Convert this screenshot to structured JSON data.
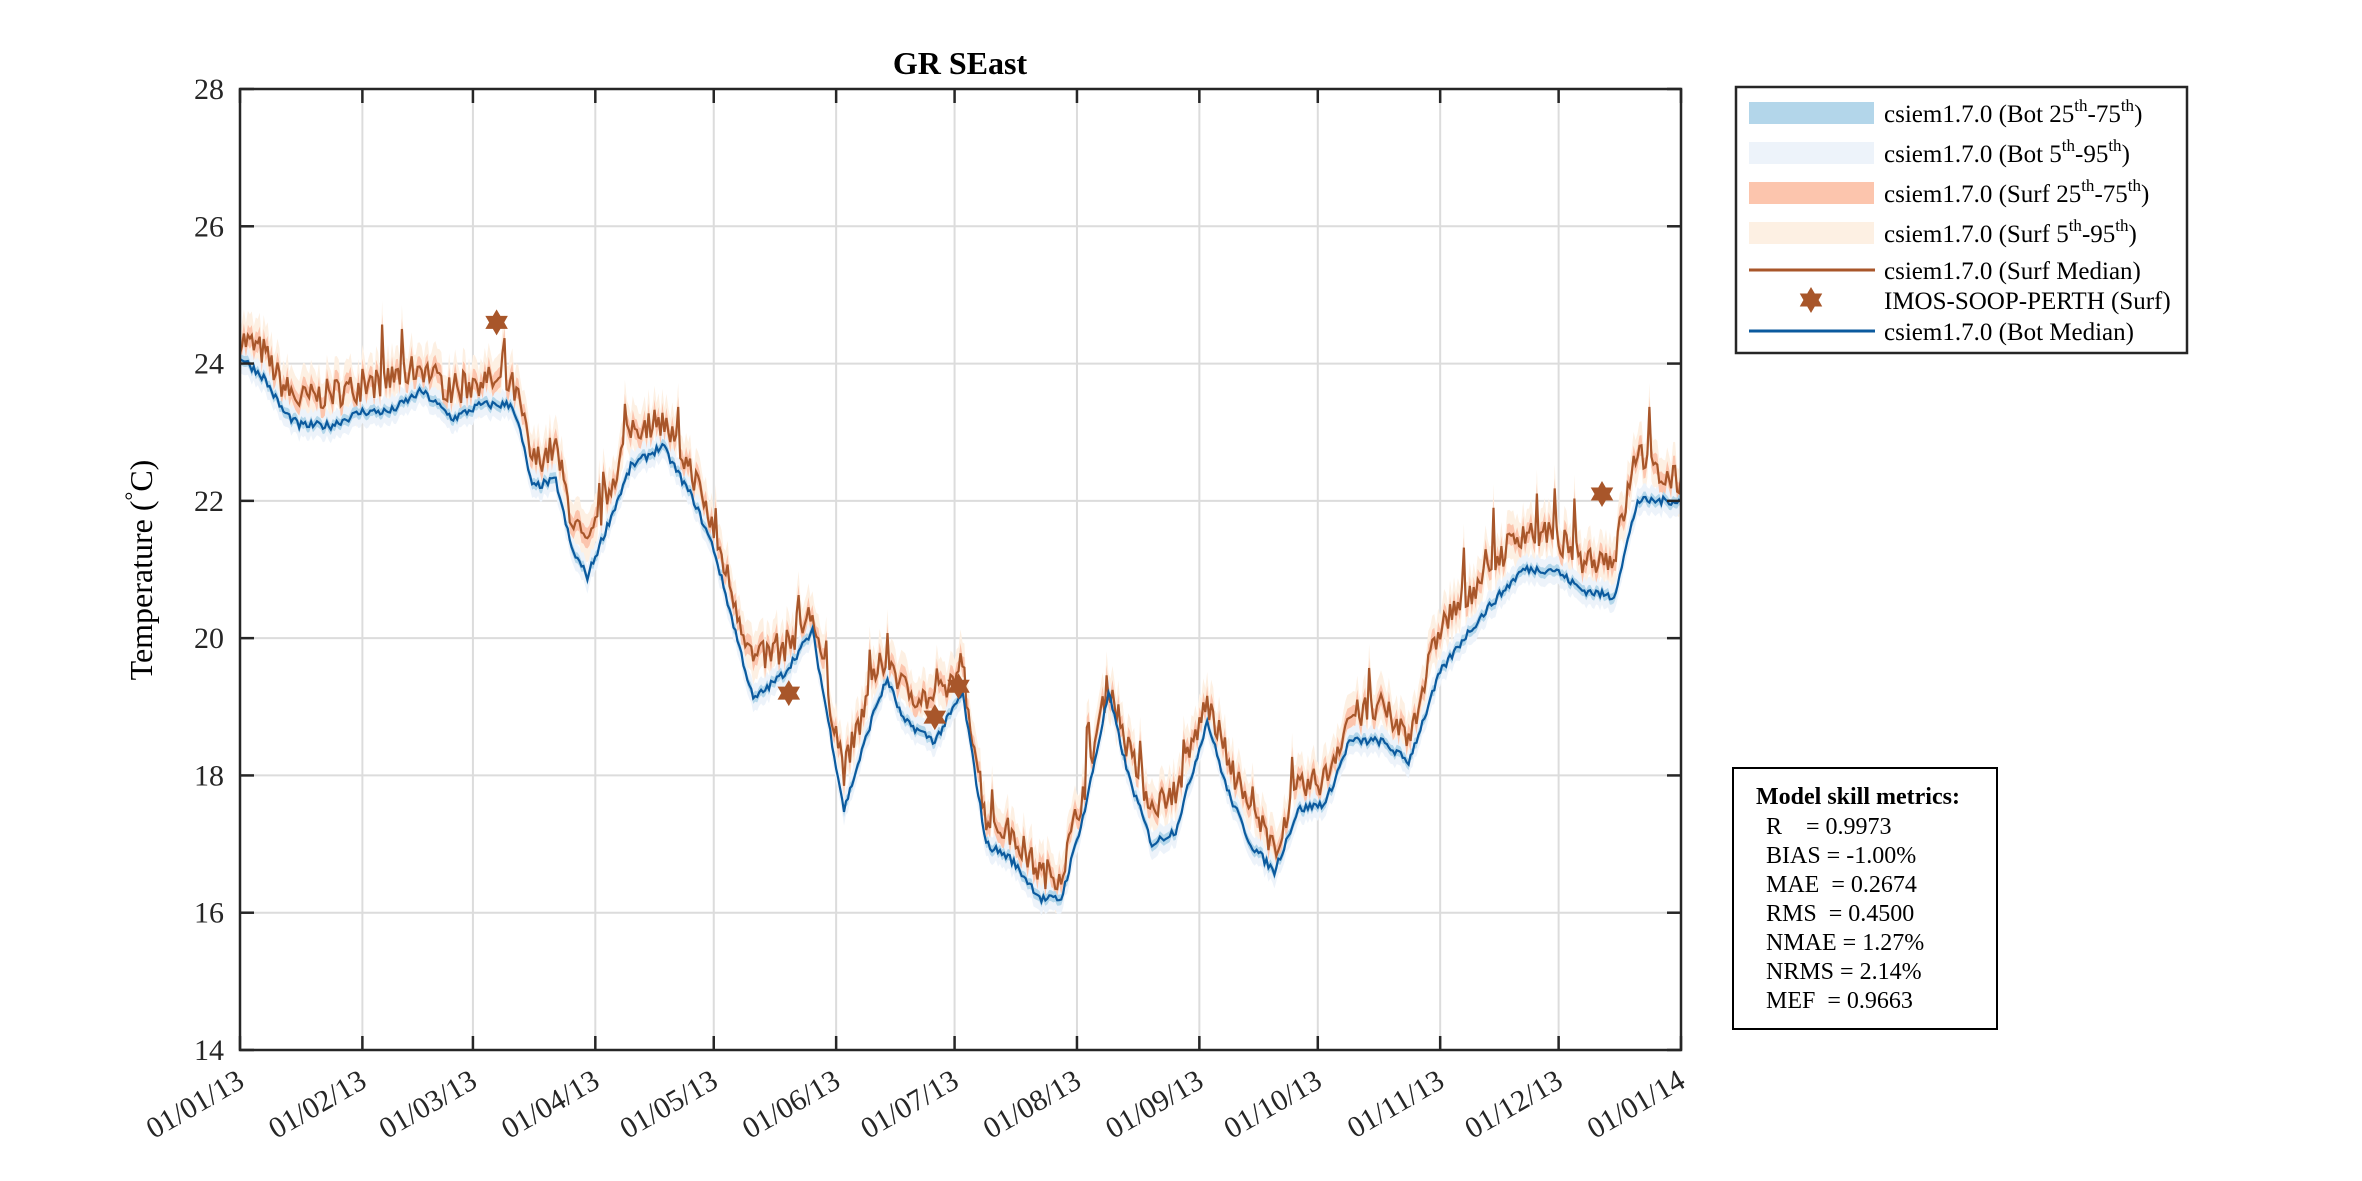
{
  "chart_data": {
    "type": "line",
    "title": "GR SEast",
    "ylabel": {
      "pre": "Temperature (",
      "sup": "°",
      "post": "C)"
    },
    "xlabel": "",
    "ylim": [
      14,
      28
    ],
    "xlim_days": [
      0,
      365
    ],
    "grid": true,
    "legend_placement": "outside-top-right",
    "yticks": [
      14,
      16,
      18,
      20,
      22,
      24,
      26,
      28
    ],
    "xticks": [
      {
        "day": 0,
        "label": "01/01/13"
      },
      {
        "day": 31,
        "label": "01/02/13"
      },
      {
        "day": 59,
        "label": "01/03/13"
      },
      {
        "day": 90,
        "label": "01/04/13"
      },
      {
        "day": 120,
        "label": "01/05/13"
      },
      {
        "day": 151,
        "label": "01/06/13"
      },
      {
        "day": 181,
        "label": "01/07/13"
      },
      {
        "day": 212,
        "label": "01/08/13"
      },
      {
        "day": 243,
        "label": "01/09/13"
      },
      {
        "day": 273,
        "label": "01/10/13"
      },
      {
        "day": 304,
        "label": "01/11/13"
      },
      {
        "day": 334,
        "label": "01/12/13"
      },
      {
        "day": 365,
        "label": "01/01/14"
      }
    ],
    "days": [
      0,
      6,
      11,
      15,
      23,
      31,
      38,
      46,
      50,
      54,
      61,
      69,
      71,
      74,
      80,
      84,
      88,
      99,
      107,
      115,
      120,
      130,
      138,
      145,
      153,
      161,
      164,
      168,
      176,
      183,
      189,
      195,
      203,
      208,
      214,
      220,
      225,
      231,
      237,
      245,
      250,
      256,
      262,
      268,
      275,
      281,
      289,
      296,
      304,
      310,
      317,
      325,
      333,
      340,
      348,
      354,
      359,
      365
    ],
    "series": [
      {
        "name": "csiem1.7.0 (Surf Median)",
        "color": "#a8562a",
        "values": [
          24.3,
          24.1,
          23.6,
          23.4,
          23.5,
          23.6,
          23.7,
          23.9,
          23.7,
          23.5,
          23.7,
          23.6,
          23.3,
          22.5,
          22.7,
          21.7,
          21.2,
          23.0,
          23.1,
          22.3,
          21.5,
          19.6,
          19.8,
          20.3,
          18.0,
          19.4,
          19.7,
          19.2,
          19.0,
          19.5,
          17.3,
          17.1,
          16.5,
          16.5,
          17.8,
          19.3,
          18.3,
          17.5,
          17.7,
          19.0,
          18.2,
          17.4,
          16.9,
          17.7,
          17.9,
          18.8,
          18.9,
          18.5,
          20.1,
          20.5,
          21.0,
          21.5,
          21.4,
          21.1,
          21.1,
          22.7,
          22.3,
          22.2
        ]
      },
      {
        "name": "csiem1.7.0 (Bot Median)",
        "color": "#0b5a9e",
        "values": [
          24.1,
          23.8,
          23.3,
          23.1,
          23.1,
          23.3,
          23.3,
          23.6,
          23.4,
          23.2,
          23.4,
          23.4,
          23.0,
          22.2,
          22.3,
          21.3,
          20.9,
          22.5,
          22.8,
          22.0,
          21.3,
          19.1,
          19.5,
          20.1,
          17.5,
          19.0,
          19.4,
          18.8,
          18.5,
          19.2,
          17.0,
          16.8,
          16.2,
          16.2,
          17.5,
          19.2,
          18.0,
          17.0,
          17.2,
          18.8,
          17.8,
          17.0,
          16.6,
          17.5,
          17.6,
          18.5,
          18.5,
          18.2,
          19.5,
          20.0,
          20.5,
          21.0,
          21.0,
          20.7,
          20.6,
          22.0,
          22.0,
          22.0
        ]
      }
    ],
    "bands": {
      "bot_iqr_halfwidth": 0.08,
      "bot_p5_95_halfwidth": 0.2,
      "surf_iqr_halfwidth": 0.15,
      "surf_p5_95_halfwidth": 0.35
    },
    "observations": {
      "name": "IMOS-SOOP-PERTH (Surf)",
      "color": "#a8562a",
      "points": [
        {
          "day": 65,
          "value": 24.6
        },
        {
          "day": 139,
          "value": 19.2
        },
        {
          "day": 176,
          "value": 18.85
        },
        {
          "day": 182,
          "value": 19.3
        },
        {
          "day": 345,
          "value": 22.1
        }
      ]
    },
    "legend": [
      {
        "kind": "patch",
        "color": "#b3d6ea",
        "parts": [
          "csiem1.7.0 (Bot 25",
          "th",
          "-75",
          "th",
          ")"
        ]
      },
      {
        "kind": "patch",
        "color": "#edf3fa",
        "parts": [
          "csiem1.7.0 (Bot 5",
          "th",
          "-95",
          "th",
          ")"
        ]
      },
      {
        "kind": "patch",
        "color": "#fcc5ad",
        "parts": [
          "csiem1.7.0 (Surf 25",
          "th",
          "-75",
          "th",
          ")"
        ]
      },
      {
        "kind": "patch",
        "color": "#fdf0e3",
        "parts": [
          "csiem1.7.0 (Surf 5",
          "th",
          "-95",
          "th",
          ")"
        ]
      },
      {
        "kind": "line",
        "color": "#a8562a",
        "parts": [
          "csiem1.7.0 (Surf Median)"
        ]
      },
      {
        "kind": "star",
        "color": "#a8562a",
        "parts": [
          "IMOS-SOOP-PERTH (Surf)"
        ]
      },
      {
        "kind": "line",
        "color": "#0b5a9e",
        "parts": [
          "csiem1.7.0 (Bot Median)"
        ]
      }
    ],
    "metrics": {
      "title": "Model skill metrics:",
      "lines": [
        "R    = 0.9973",
        "BIAS = -1.00%",
        "MAE  = 0.2674",
        "RMS  = 0.4500",
        "NMAE = 1.27%",
        "NRMS = 2.14%",
        "MEF  = 0.9663"
      ]
    }
  }
}
